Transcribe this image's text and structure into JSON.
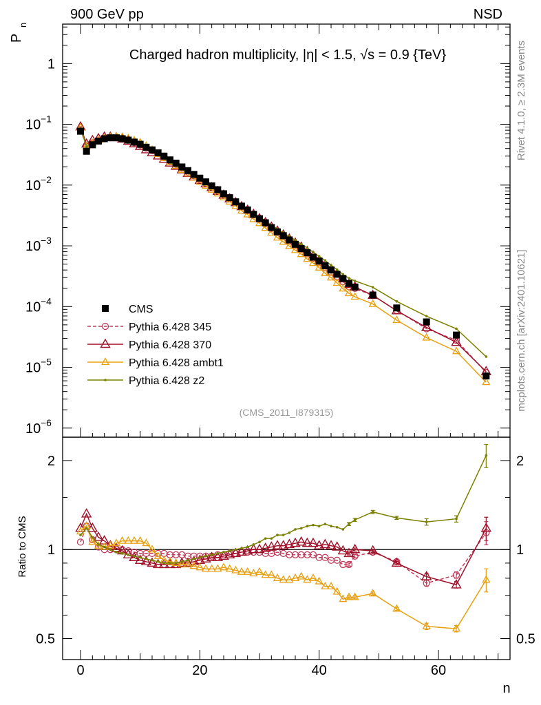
{
  "header": {
    "left": "900 GeV pp",
    "right": "NSD"
  },
  "side_labels": {
    "version": "Rivet 4.1.0, ≥ 2.3M events",
    "source": "mcplots.cern.ch [arXiv:2401.10621]"
  },
  "chart_data": {
    "type": "line",
    "title": "Charged hadron multiplicity, |η| < 1.5, √s = 0.9 {TeV}",
    "analysis_tag": "(CMS_2011_I879315)",
    "xlabel": "n",
    "ylabel_main": "P",
    "ylabel_main_sub": "n",
    "ylabel_ratio": "Ratio to CMS",
    "xlim": [
      -3,
      72
    ],
    "ylim_main_log10": [
      -6.15,
      0.65
    ],
    "ylim_ratio_log10": [
      -0.372,
      0.38
    ],
    "x_ticks": [
      0,
      20,
      40,
      60
    ],
    "main_y_ticks": [
      {
        "value": 1,
        "label": "1"
      },
      {
        "value": 0.1,
        "label": "10",
        "exp": "−1"
      },
      {
        "value": 0.01,
        "label": "10",
        "exp": "−2"
      },
      {
        "value": 0.001,
        "label": "10",
        "exp": "−3"
      },
      {
        "value": 0.0001,
        "label": "10",
        "exp": "−4"
      },
      {
        "value": 1e-05,
        "label": "10",
        "exp": "−5"
      },
      {
        "value": 1e-06,
        "label": "10",
        "exp": "−6"
      }
    ],
    "ratio_y_ticks": [
      {
        "value": 0.5,
        "label": "0.5"
      },
      {
        "value": 1,
        "label": "1"
      },
      {
        "value": 2,
        "label": "2"
      }
    ],
    "x": [
      0,
      1,
      2,
      3,
      4,
      5,
      6,
      7,
      8,
      9,
      10,
      11,
      12,
      13,
      14,
      15,
      16,
      17,
      18,
      19,
      20,
      21,
      22,
      23,
      24,
      25,
      26,
      27,
      28,
      29,
      30,
      31,
      32,
      33,
      34,
      35,
      36,
      37,
      38,
      39,
      40,
      41,
      42,
      43,
      44,
      45,
      46,
      49,
      53,
      58,
      63,
      68
    ],
    "reference": {
      "name": "CMS",
      "values": [
        0.077,
        0.036,
        0.046,
        0.053,
        0.058,
        0.06,
        0.06,
        0.058,
        0.055,
        0.051,
        0.047,
        0.042,
        0.038,
        0.034,
        0.03,
        0.026,
        0.023,
        0.0199,
        0.0173,
        0.015,
        0.013,
        0.0113,
        0.0097,
        0.0084,
        0.0072,
        0.0062,
        0.0053,
        0.0045,
        0.0039,
        0.0033,
        0.0028,
        0.0024,
        0.002,
        0.0017,
        0.00147,
        0.00125,
        0.00106,
        0.0009,
        0.00077,
        0.00065,
        0.00056,
        0.00047,
        0.0004,
        0.00034,
        0.00029,
        0.00024,
        0.00021,
        0.000155,
        9.5e-05,
        5.6e-05,
        3.4e-05,
        7.2e-06
      ]
    },
    "series": [
      {
        "name": "Pythia 6.428 345",
        "color": "#c03a5a",
        "marker": "circle",
        "dashed": true,
        "ratio": [
          1.06,
          1.2,
          1.08,
          1.02,
          1.0,
          1.0,
          1.0,
          1.0,
          0.99,
          0.98,
          0.97,
          0.97,
          0.97,
          0.97,
          0.97,
          0.96,
          0.96,
          0.96,
          0.95,
          0.95,
          0.95,
          0.95,
          0.95,
          0.96,
          0.96,
          0.97,
          0.97,
          0.98,
          0.98,
          0.98,
          0.98,
          0.97,
          0.97,
          0.98,
          0.97,
          0.96,
          0.96,
          0.96,
          0.96,
          0.96,
          0.94,
          0.94,
          0.92,
          0.92,
          0.89,
          0.89,
          0.95,
          0.98,
          0.91,
          0.77,
          0.82,
          1.14
        ]
      },
      {
        "name": "Pythia 6.428 370",
        "color": "#a01028",
        "marker": "triangle",
        "dashed": false,
        "ratio": [
          1.18,
          1.32,
          1.18,
          1.1,
          1.07,
          1.03,
          1.01,
          0.99,
          0.96,
          0.94,
          0.92,
          0.91,
          0.9,
          0.89,
          0.89,
          0.89,
          0.89,
          0.9,
          0.9,
          0.91,
          0.92,
          0.93,
          0.94,
          0.94,
          0.95,
          0.96,
          0.97,
          0.98,
          0.99,
          1.0,
          1.0,
          1.01,
          1.02,
          1.03,
          1.03,
          1.04,
          1.05,
          1.06,
          1.05,
          1.05,
          1.03,
          1.04,
          1.03,
          1.02,
          0.99,
          0.97,
          1.0,
          0.99,
          0.9,
          0.81,
          0.76,
          1.18
        ]
      },
      {
        "name": "Pythia 6.428 ambt1",
        "color": "#e8a010",
        "marker": "triangle-small",
        "dashed": false,
        "ratio": [
          1.15,
          1.2,
          1.06,
          1.03,
          1.02,
          1.03,
          1.05,
          1.07,
          1.07,
          1.07,
          1.07,
          1.05,
          1.0,
          0.95,
          0.92,
          0.91,
          0.9,
          0.89,
          0.89,
          0.88,
          0.87,
          0.86,
          0.86,
          0.86,
          0.87,
          0.86,
          0.85,
          0.84,
          0.84,
          0.83,
          0.84,
          0.82,
          0.82,
          0.8,
          0.79,
          0.79,
          0.8,
          0.81,
          0.79,
          0.8,
          0.78,
          0.75,
          0.75,
          0.72,
          0.68,
          0.69,
          0.69,
          0.71,
          0.63,
          0.55,
          0.54,
          0.79
        ]
      },
      {
        "name": "Pythia 6.428 z2",
        "color": "#7a8000",
        "marker": "dot",
        "dashed": false,
        "ratio": [
          1.12,
          1.18,
          1.1,
          1.04,
          1.02,
          1.0,
          0.98,
          0.97,
          0.96,
          0.95,
          0.94,
          0.93,
          0.92,
          0.91,
          0.9,
          0.9,
          0.9,
          0.91,
          0.92,
          0.93,
          0.94,
          0.95,
          0.96,
          0.97,
          0.98,
          0.99,
          1.0,
          1.01,
          1.02,
          1.04,
          1.06,
          1.09,
          1.09,
          1.12,
          1.12,
          1.14,
          1.17,
          1.18,
          1.2,
          1.21,
          1.2,
          1.22,
          1.2,
          1.19,
          1.17,
          1.22,
          1.26,
          1.34,
          1.28,
          1.24,
          1.27,
          2.08
        ]
      }
    ]
  }
}
